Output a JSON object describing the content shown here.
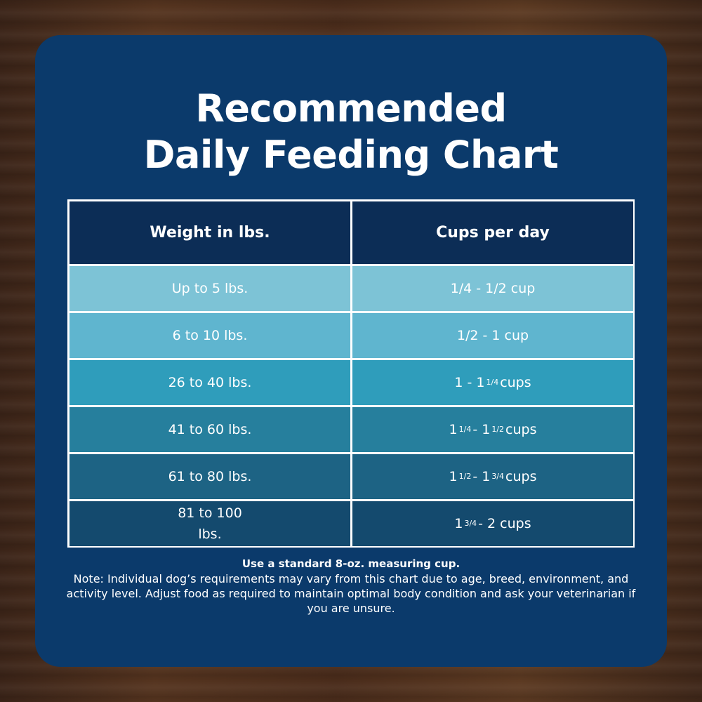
{
  "title_line1": "Recommended",
  "title_line2": "Daily Feeding Chart",
  "colors": {
    "card": "#0b3a6b",
    "header": "#0c2d56",
    "rows": [
      "#7dc3d6",
      "#5fb5cf",
      "#2f9dbb",
      "#267f9d",
      "#1d6384",
      "#144a6e"
    ]
  },
  "chart_data": {
    "type": "table",
    "columns": [
      "Weight in lbs.",
      "Cups per day"
    ],
    "rows": [
      {
        "weight": "Up to 5 lbs.",
        "cups": [
          {
            "t": "1/4 - 1/2 cup"
          }
        ]
      },
      {
        "weight": "6 to 10 lbs.",
        "cups": [
          {
            "t": "1/2 - 1 cup"
          }
        ]
      },
      {
        "weight": "26 to 40 lbs.",
        "cups": [
          {
            "t": "1 - 1"
          },
          {
            "sup": "1/4"
          },
          {
            "t": "cups"
          }
        ]
      },
      {
        "weight": "41 to 60 lbs.",
        "cups": [
          {
            "t": "1"
          },
          {
            "sup": "1/4"
          },
          {
            "t": "- 1"
          },
          {
            "sup": "1/2"
          },
          {
            "t": "cups"
          }
        ]
      },
      {
        "weight": "61 to 80 lbs.",
        "cups": [
          {
            "t": "1"
          },
          {
            "sup": "1/2"
          },
          {
            "t": "- 1"
          },
          {
            "sup": "3/4"
          },
          {
            "t": "cups"
          }
        ]
      },
      {
        "weight": "81 to 100\nlbs.",
        "cups": [
          {
            "t": "1"
          },
          {
            "sup": "3/4"
          },
          {
            "t": "- 2 cups"
          }
        ]
      }
    ]
  },
  "notes": {
    "bold": "Use a standard 8-oz. measuring cup.",
    "text": "Note: Individual dog’s requirements may vary from this chart due to age, breed, environment, and activity level. Adjust food as required to maintain optimal body condition and ask your veterinarian if you are unsure."
  }
}
